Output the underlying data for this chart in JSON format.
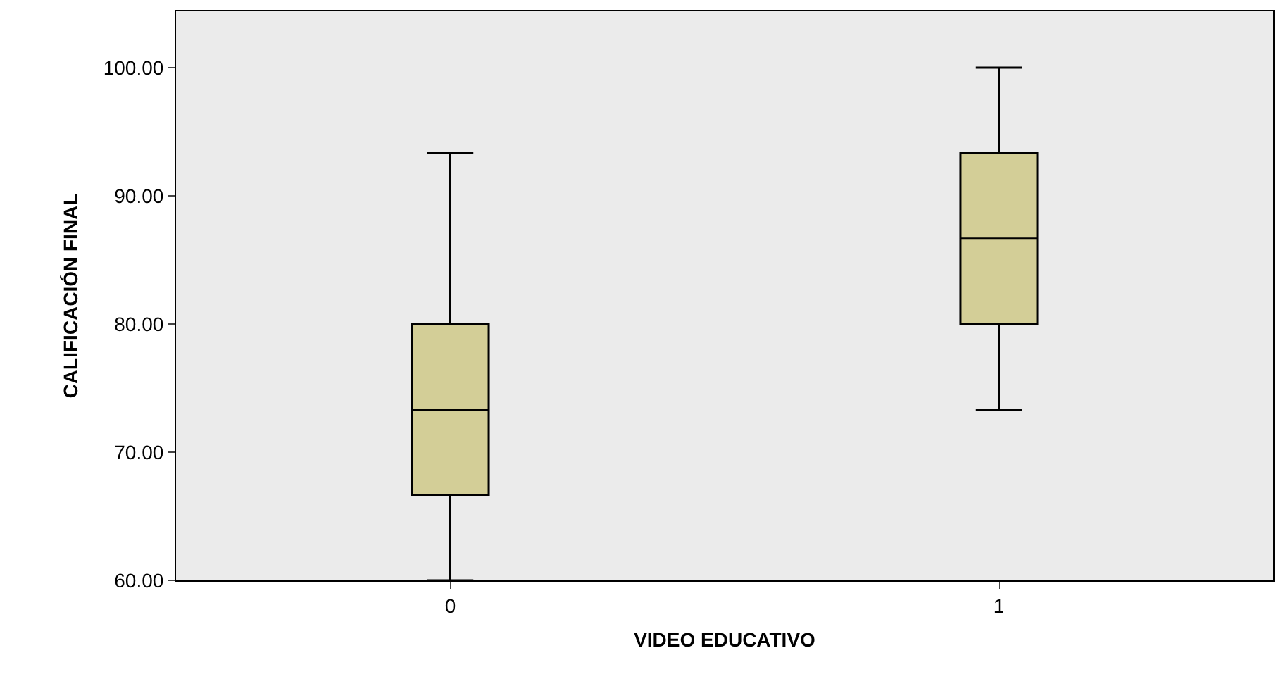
{
  "chart_data": {
    "type": "box",
    "xlabel": "VIDEO EDUCATIVO",
    "ylabel": "CALIFICACIÓN FINAL",
    "categories": [
      "0",
      "1"
    ],
    "boxes": [
      {
        "low": 60,
        "q1": 66.67,
        "median": 73.33,
        "q3": 80,
        "high": 93.33
      },
      {
        "low": 73.33,
        "q1": 80,
        "median": 86.67,
        "q3": 93.33,
        "high": 100
      }
    ],
    "color": "#d3ce97",
    "ylim": [
      60,
      104.4
    ],
    "yticks": [
      {
        "value": 60,
        "label": "60.00"
      },
      {
        "value": 70,
        "label": "70.00"
      },
      {
        "value": 80,
        "label": "80.00"
      },
      {
        "value": 90,
        "label": "90.00"
      },
      {
        "value": 100,
        "label": "100.00"
      }
    ],
    "grid": false,
    "legend": false
  }
}
